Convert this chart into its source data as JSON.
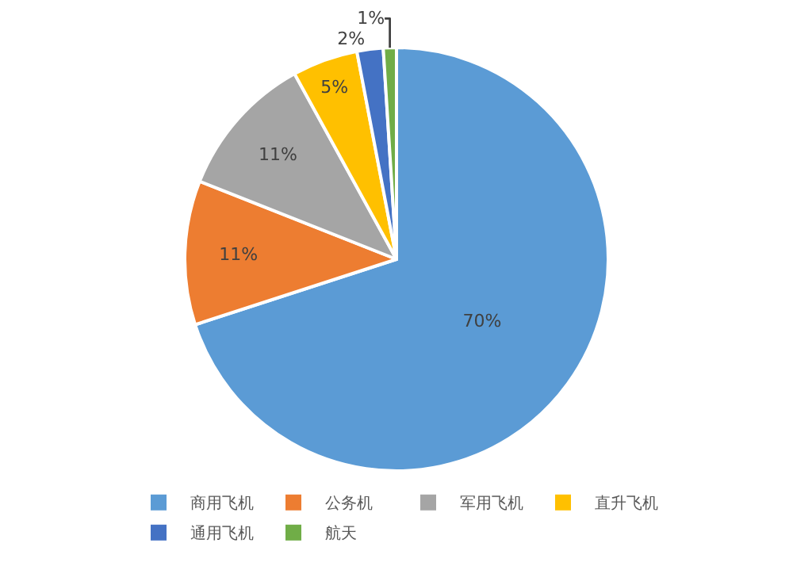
{
  "chart_data": {
    "type": "pie",
    "categories": [
      "商用飞机",
      "公务机",
      "军用飞机",
      "直升飞机",
      "通用飞机",
      "航天"
    ],
    "values": [
      70,
      11,
      11,
      5,
      2,
      1
    ],
    "colors": [
      "#5b9bd5",
      "#ed7d31",
      "#a5a5a5",
      "#ffc000",
      "#4472c4",
      "#70ad47"
    ],
    "value_labels": [
      "70%",
      "11%",
      "11%",
      "5%",
      "2%",
      "1%"
    ],
    "legend": "bottom"
  }
}
